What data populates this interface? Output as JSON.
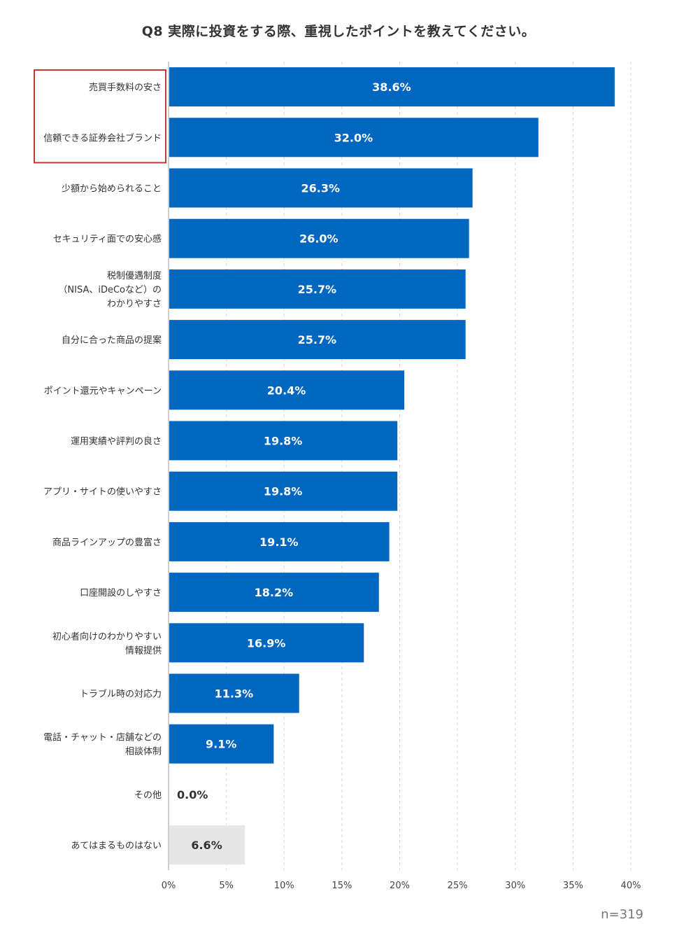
{
  "chart_data": {
    "type": "bar",
    "orientation": "horizontal",
    "title": "Q8 実際に投資をする際、重視したポイントを教えてください。",
    "categories": [
      [
        "売買手数料の安さ"
      ],
      [
        "信頼できる証券会社ブランド"
      ],
      [
        "少額から始められること"
      ],
      [
        "セキュリティ面での安心感"
      ],
      [
        "税制優遇制度",
        "（NISA、iDeCoなど）の",
        "わかりやすさ"
      ],
      [
        "自分に合った商品の提案"
      ],
      [
        "ポイント還元やキャンペーン"
      ],
      [
        "運用実績や評判の良さ"
      ],
      [
        "アプリ・サイトの使いやすさ"
      ],
      [
        "商品ラインアップの豊富さ"
      ],
      [
        "口座開設のしやすさ"
      ],
      [
        "初心者向けのわかりやすい",
        "情報提供"
      ],
      [
        "トラブル時の対応力"
      ],
      [
        "電話・チャット・店舗などの",
        "相談体制"
      ],
      [
        "その他"
      ],
      [
        "あてはまるものはない"
      ]
    ],
    "values": [
      38.6,
      32.0,
      26.3,
      26.0,
      25.7,
      25.7,
      20.4,
      19.8,
      19.8,
      19.1,
      18.2,
      16.9,
      11.3,
      9.1,
      0.0,
      6.6
    ],
    "value_labels": [
      "38.6%",
      "32.0%",
      "26.3%",
      "26.0%",
      "25.7%",
      "25.7%",
      "20.4%",
      "19.8%",
      "19.8%",
      "19.1%",
      "18.2%",
      "16.9%",
      "11.3%",
      "9.1%",
      "0.0%",
      "6.6%"
    ],
    "bar_colors": [
      "#0067c0",
      "#0067c0",
      "#0067c0",
      "#0067c0",
      "#0067c0",
      "#0067c0",
      "#0067c0",
      "#0067c0",
      "#0067c0",
      "#0067c0",
      "#0067c0",
      "#0067c0",
      "#0067c0",
      "#0067c0",
      "#0067c0",
      "#e6e6e6"
    ],
    "value_label_colors": [
      "#ffffff",
      "#ffffff",
      "#ffffff",
      "#ffffff",
      "#ffffff",
      "#ffffff",
      "#ffffff",
      "#ffffff",
      "#ffffff",
      "#ffffff",
      "#ffffff",
      "#ffffff",
      "#ffffff",
      "#ffffff",
      "#333333",
      "#333333"
    ],
    "xlim": [
      0,
      40
    ],
    "xticks": [
      0,
      5,
      10,
      15,
      20,
      25,
      30,
      35,
      40
    ],
    "xtick_labels": [
      "0%",
      "5%",
      "10%",
      "15%",
      "20%",
      "25%",
      "30%",
      "35%",
      "40%"
    ],
    "grid": "vertical dashed",
    "highlight": {
      "categories": [
        0,
        1
      ],
      "color": "#c0393b"
    },
    "note": "n=319"
  }
}
